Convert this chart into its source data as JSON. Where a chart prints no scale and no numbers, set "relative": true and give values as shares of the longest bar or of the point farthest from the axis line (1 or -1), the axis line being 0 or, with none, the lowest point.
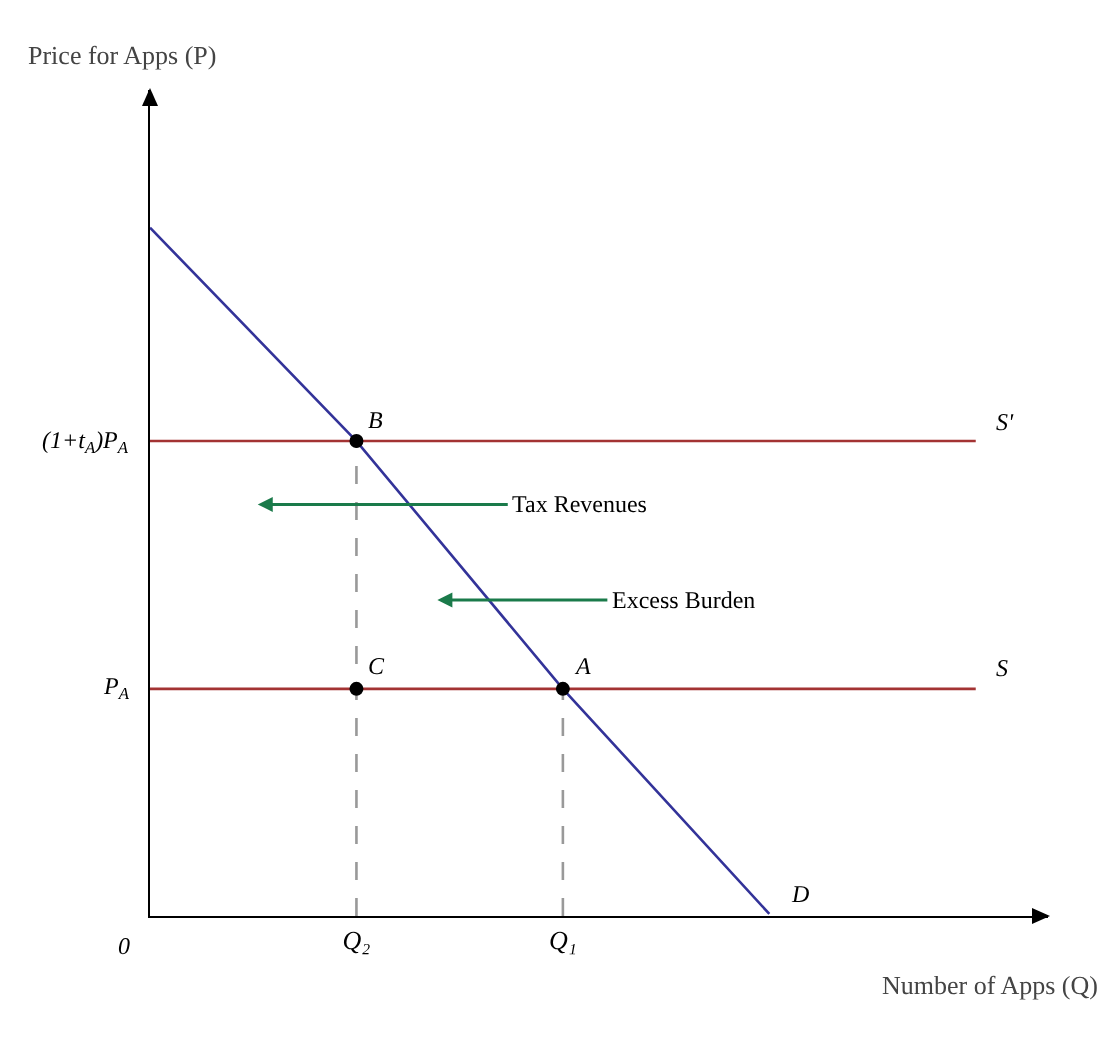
{
  "chart_data": {
    "type": "line",
    "relative": true,
    "xlabel": "Number of Apps (Q)",
    "grid": false,
    "legend": false,
    "categories": [
      null,
      "Q₂",
      "Q₁",
      null,
      null
    ],
    "series": [
      {
        "type": "line",
        "color": "#333399",
        "values": [
          1,
          0.69,
          0.33,
          0.003,
          null
        ]
      },
      {
        "type": "line",
        "color": "#a33333",
        "values": [
          0.69,
          0.69,
          0.69,
          0.69,
          0.69
        ]
      },
      {
        "type": "line",
        "color": "#a33333",
        "values": [
          0.33,
          0.33,
          0.33,
          0.33,
          0.33
        ]
      },
      {
        "type": "line",
        "color": "#999999",
        "line_style": "dashed",
        "x": [
          "Q₂",
          "Q₂"
        ],
        "values": [
          0,
          0.69
        ]
      },
      {
        "type": "line",
        "color": "#999999",
        "line_style": "dashed",
        "x": [
          "Q₁",
          "Q₁"
        ],
        "values": [
          0,
          0.33
        ]
      },
      {
        "type": "scatter",
        "color": "#000000",
        "marker": "circle",
        "x": [
          "Q₂",
          "Q₂",
          "Q₁"
        ],
        "values": [
          0.69,
          0.33,
          0.33
        ]
      }
    ],
    "annotations": [
      "Tax Revenues",
      "Excess Burden",
      "(1+t$_{A}$)P$_{A}$",
      "P$_{A}$",
      "0",
      {
        "text": "B",
        "x": "Q₂",
        "y": 0.69
      },
      {
        "text": "C",
        "x": "Q₂",
        "y": 0.33
      },
      {
        "text": "A",
        "x": "Q₁",
        "y": 0.33
      },
      "D",
      "S'",
      "S",
      "Price for Apps (P)"
    ]
  }
}
